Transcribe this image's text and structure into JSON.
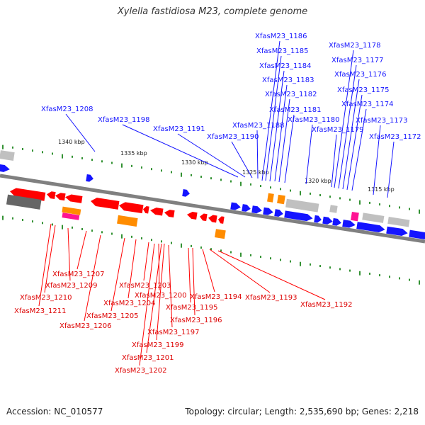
{
  "title": "Xylella fastidiosa M23, complete genome",
  "footer": {
    "accession": "Accession: NC_010577",
    "summary": "Topology: circular; Length: 2,535,690 bp; Genes: 2,218"
  },
  "colors": {
    "forward": "#1414ff",
    "reverse": "#ff0000",
    "rna": "#ff8c00",
    "pseudo": "#c0c0c0",
    "other": "#ff1493",
    "backbone": "#808080",
    "tick": "#007700"
  },
  "kbp_ticks": [
    "1340 kbp",
    "1335 kbp",
    "1330 kbp",
    "1325 kbp",
    "1320 kbp",
    "1315 kbp"
  ],
  "top_labels": [
    "XfasM23_1186",
    "XfasM23_1185",
    "XfasM23_1184",
    "XfasM23_1183",
    "XfasM23_1182",
    "XfasM23_1181",
    "XfasM23_1180",
    "XfasM23_1179",
    "XfasM23_1178",
    "XfasM23_1177",
    "XfasM23_1176",
    "XfasM23_1175",
    "XfasM23_1174",
    "XfasM23_1173",
    "XfasM23_1172",
    "XfasM23_1208",
    "XfasM23_1198",
    "XfasM23_1191",
    "XfasM23_1190",
    "XfasM23_1188"
  ],
  "bottom_labels": [
    "XfasM23_1207",
    "XfasM23_1209",
    "XfasM23_1210",
    "XfasM23_1211",
    "XfasM23_1206",
    "XfasM23_1205",
    "XfasM23_1204",
    "XfasM23_1203",
    "XfasM23_1200",
    "XfasM23_1195",
    "XfasM23_1196",
    "XfasM23_1197",
    "XfasM23_1199",
    "XfasM23_1201",
    "XfasM23_1202",
    "XfasM23_1194",
    "XfasM23_1193",
    "XfasM23_1192"
  ]
}
